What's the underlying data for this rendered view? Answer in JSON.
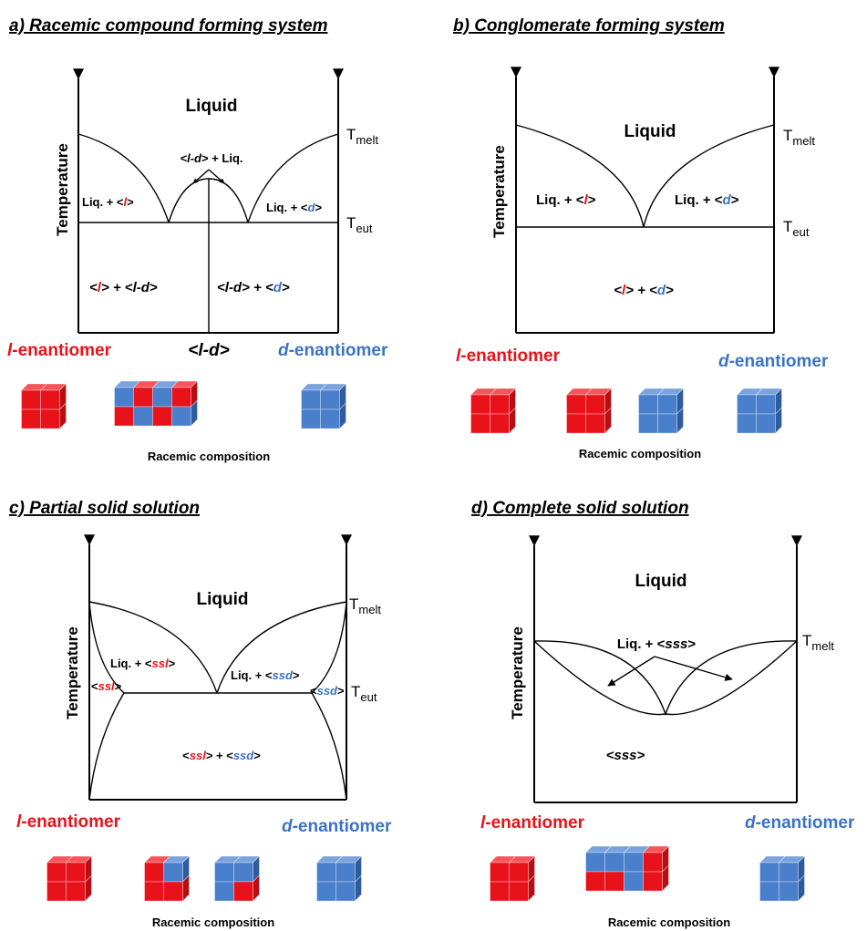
{
  "colors": {
    "l": "#e8131a",
    "d": "#3b73c5",
    "l_face": "#e8131a",
    "l_top": "#f5555a",
    "l_side": "#b80d12",
    "d_face": "#4a7fcc",
    "d_top": "#7aa3de",
    "d_side": "#2e5c9e"
  },
  "panels": {
    "a": {
      "title": "a) Racemic compound forming system",
      "ylabel": "Temperature",
      "t_melt": "T",
      "t_melt_sub": "melt",
      "t_eut": "T",
      "t_eut_sub": "eut",
      "liquid": "Liquid",
      "compound_liq": {
        "pre": "<",
        "mid": "l-d",
        "post": "> + Liq."
      },
      "liq_l": {
        "pre": "Liq. + <",
        "sym": "l",
        "post": ">"
      },
      "liq_d": {
        "pre": "Liq. + <",
        "sym": "d",
        "post": ">"
      },
      "solid_left": {
        "a": "<",
        "b": "l",
        "c": "> + <",
        "d": "l-d",
        "e": ">"
      },
      "solid_right": {
        "a": "<",
        "b": "l-d",
        "c": "> + <",
        "d": "d",
        "e": ">"
      },
      "x_mid": {
        "a": "<",
        "b": "l-d",
        "c": ">"
      },
      "l_label": {
        "sym": "l",
        "rest": "-enantiomer"
      },
      "d_label": {
        "sym": "d",
        "rest": "-enantiomer"
      },
      "caption": "Racemic composition"
    },
    "b": {
      "title": "b) Conglomerate forming system",
      "ylabel": "Temperature",
      "t_melt": "T",
      "t_melt_sub": "melt",
      "t_eut": "T",
      "t_eut_sub": "eut",
      "liquid": "Liquid",
      "liq_l": {
        "pre": "Liq. + <",
        "sym": "l",
        "post": ">"
      },
      "liq_d": {
        "pre": "Liq. + <",
        "sym": "d",
        "post": ">"
      },
      "solid": {
        "a": "<",
        "b": "l",
        "c": "> + <",
        "d": "d",
        "e": ">"
      },
      "l_label": {
        "sym": "l",
        "rest": "-enantiomer"
      },
      "d_label": {
        "sym": "d",
        "rest": "-enantiomer"
      },
      "plus": "+",
      "caption": "Racemic composition"
    },
    "c": {
      "title": "c) Partial solid solution",
      "ylabel": "Temperature",
      "t_melt": "T",
      "t_melt_sub": "melt",
      "t_eut": "T",
      "t_eut_sub": "eut",
      "liquid": "Liquid",
      "liq_l": {
        "pre": "Liq. + <",
        "sym": "ssl",
        "post": ">"
      },
      "liq_d": {
        "pre": "Liq. + <",
        "sym": "ssd",
        "post": ">"
      },
      "ss_l": {
        "pre": "<",
        "sym": "ssl",
        "post": ">"
      },
      "ss_d": {
        "pre": "<",
        "sym": "ssd",
        "post": ">"
      },
      "solid": {
        "a": "<",
        "b": "ssl",
        "c": "> + <",
        "d": "ssd",
        "e": ">"
      },
      "l_label": {
        "sym": "l",
        "rest": "-enantiomer"
      },
      "d_label": {
        "sym": "d",
        "rest": "-enantiomer"
      },
      "plus": "+",
      "caption": "Racemic composition"
    },
    "d": {
      "title": "d) Complete solid solution",
      "ylabel": "Temperature",
      "t_melt": "T",
      "t_melt_sub": "melt",
      "liquid": "Liquid",
      "liq_sss": {
        "pre": "Liq. + <",
        "sym": "sss",
        "post": ">"
      },
      "sss": {
        "pre": "<",
        "sym": "sss",
        "post": ">"
      },
      "l_label": {
        "sym": "l",
        "rest": "-enantiomer"
      },
      "d_label": {
        "sym": "d",
        "rest": "-enantiomer"
      },
      "caption": "Racemic composition"
    }
  }
}
